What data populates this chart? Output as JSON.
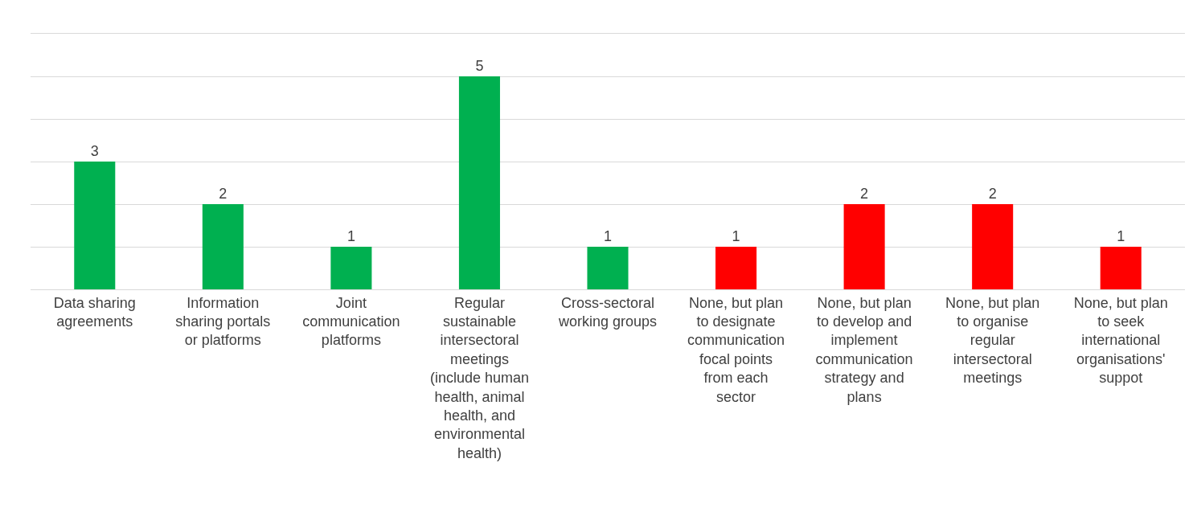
{
  "chart_data": {
    "type": "bar",
    "categories": [
      "Data sharing agreements",
      "Information sharing portals or platforms",
      "Joint communication platforms",
      "Regular sustainable intersectoral meetings (include human health, animal health, and environmental health)",
      "Cross-sectoral working groups",
      "None, but plan to designate communication focal points from each sector",
      "None, but plan to develop and implement communication strategy and plans",
      "None, but plan to organise regular intersectoral meetings",
      "None, but plan to seek international organisations' suppot"
    ],
    "values": [
      3,
      2,
      1,
      5,
      1,
      1,
      2,
      2,
      1
    ],
    "colors": [
      "#00b050",
      "#00b050",
      "#00b050",
      "#00b050",
      "#00b050",
      "#ff0000",
      "#ff0000",
      "#ff0000",
      "#ff0000"
    ],
    "ylim": [
      0,
      6
    ],
    "yticks": [
      {
        "value": 0,
        "label": null
      },
      {
        "value": 1,
        "label": null
      },
      {
        "value": 2,
        "label": null
      },
      {
        "value": 3,
        "label": null
      },
      {
        "value": 4,
        "label": null
      },
      {
        "value": 5,
        "label": null
      }
    ],
    "grid": "y",
    "tick_labels": "x",
    "data_labels": true
  }
}
